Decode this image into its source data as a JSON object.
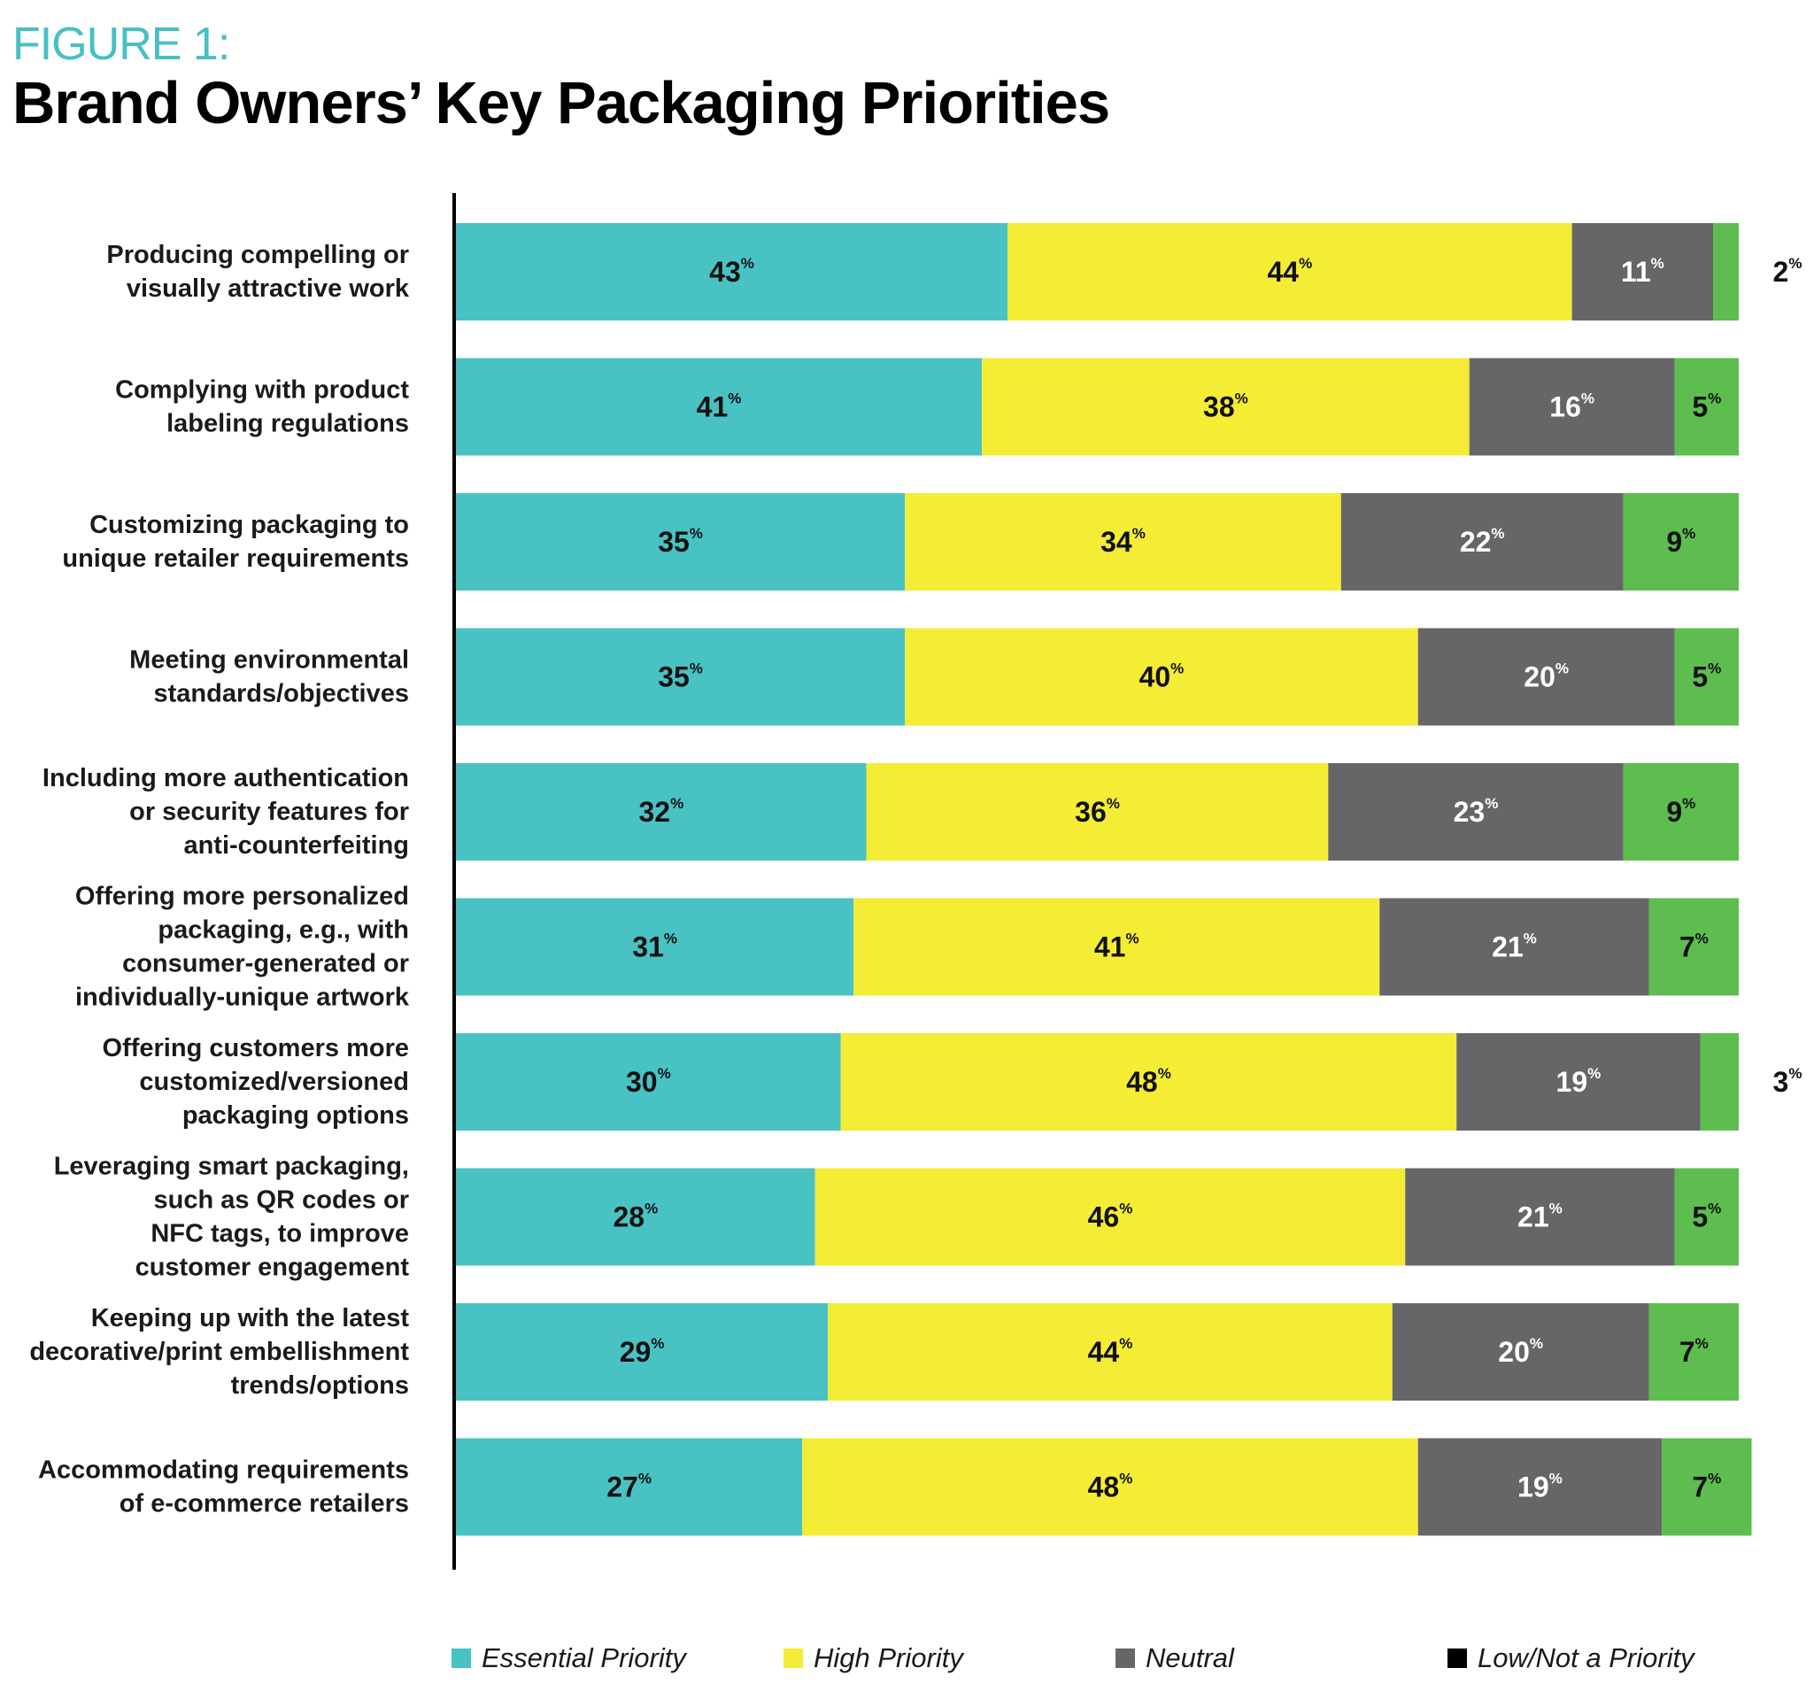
{
  "figure_label": "FIGURE 1:",
  "title": "Brand Owners’ Key Packaging Priorities",
  "colors": {
    "essential": "#49c2c4",
    "high": "#f5ec35",
    "neutral": "#666668",
    "low": "#5ebd4f",
    "legend_low": "#000000",
    "axis": "#000000"
  },
  "legend": [
    {
      "label": "Essential Priority",
      "color": "#49c2c4"
    },
    {
      "label": "High Priority",
      "color": "#f5ec35"
    },
    {
      "label": "Neutral",
      "color": "#666668"
    },
    {
      "label": "Low/Not a Priority",
      "color": "#000000"
    }
  ],
  "chart_data": {
    "type": "bar",
    "orientation": "horizontal",
    "stacked": true,
    "value_suffix": "%",
    "categories": [
      [
        "Producing compelling or",
        "visually attractive work"
      ],
      [
        "Complying with product",
        "labeling regulations"
      ],
      [
        "Customizing packaging to",
        "unique retailer requirements"
      ],
      [
        "Meeting environmental",
        "standards/objectives"
      ],
      [
        "Including more authentication",
        "or security features for",
        "anti-counterfeiting"
      ],
      [
        "Offering more personalized",
        "packaging, e.g., with",
        "consumer-generated or",
        "individually-unique artwork"
      ],
      [
        "Offering customers more",
        "customized/versioned",
        "packaging options"
      ],
      [
        "Leveraging smart packaging,",
        "such as QR codes or",
        "NFC tags, to improve",
        "customer engagement"
      ],
      [
        "Keeping up with the latest",
        "decorative/print embellishment",
        "trends/options"
      ],
      [
        "Accommodating requirements",
        "of e-commerce retailers"
      ]
    ],
    "series": [
      {
        "name": "Essential Priority",
        "values": [
          43,
          41,
          35,
          35,
          32,
          31,
          30,
          28,
          29,
          27
        ]
      },
      {
        "name": "High Priority",
        "values": [
          44,
          38,
          34,
          40,
          36,
          41,
          48,
          46,
          44,
          48
        ]
      },
      {
        "name": "Neutral",
        "values": [
          11,
          16,
          22,
          20,
          23,
          21,
          19,
          21,
          20,
          19
        ]
      },
      {
        "name": "Low/Not a Priority",
        "values": [
          2,
          5,
          9,
          5,
          9,
          7,
          3,
          5,
          7,
          7
        ]
      }
    ],
    "xlim": [
      0,
      100
    ],
    "legend_position": "bottom"
  }
}
